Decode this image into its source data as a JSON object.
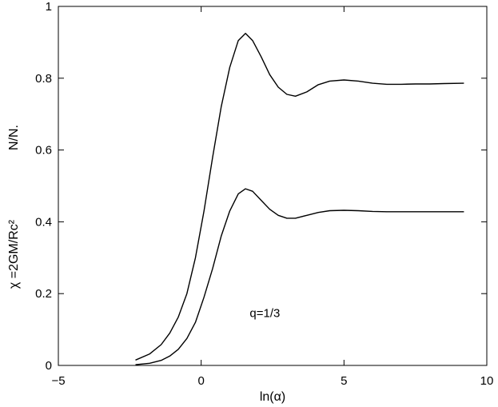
{
  "chart_data": {
    "type": "line",
    "title": "",
    "xlabel": "ln(α)",
    "ylabel_line1": "N/N.",
    "ylabel_line2": "χ =2GM/Rc²",
    "xlim": [
      -5,
      10
    ],
    "ylim": [
      0,
      1
    ],
    "x_ticks": [
      -5,
      0,
      5,
      10
    ],
    "x_tick_labels": [
      "−5",
      "0",
      "5",
      "10"
    ],
    "y_ticks": [
      0,
      0.2,
      0.4,
      0.6,
      0.8,
      1
    ],
    "y_tick_labels": [
      "0",
      "0.2",
      "0.4",
      "0.6",
      "0.8",
      "1"
    ],
    "grid": false,
    "annotations": [
      {
        "text": "q=1/3",
        "x": 1.7,
        "y": 0.135
      }
    ],
    "series": [
      {
        "x": [
          -2.3,
          -1.8,
          -1.4,
          -1.1,
          -0.8,
          -0.5,
          -0.2,
          0.1,
          0.4,
          0.7,
          1.0,
          1.3,
          1.55,
          1.8,
          2.1,
          2.4,
          2.7,
          3.0,
          3.3,
          3.7,
          4.1,
          4.5,
          5.0,
          5.5,
          6.0,
          6.5,
          7.0,
          7.5,
          8.0,
          8.5,
          9.2
        ],
        "values": [
          0.015,
          0.032,
          0.058,
          0.09,
          0.135,
          0.2,
          0.3,
          0.43,
          0.58,
          0.72,
          0.83,
          0.905,
          0.925,
          0.905,
          0.86,
          0.81,
          0.775,
          0.755,
          0.75,
          0.762,
          0.782,
          0.792,
          0.795,
          0.792,
          0.786,
          0.783,
          0.783,
          0.784,
          0.784,
          0.785,
          0.786
        ]
      },
      {
        "x": [
          -2.3,
          -1.8,
          -1.4,
          -1.1,
          -0.8,
          -0.5,
          -0.2,
          0.1,
          0.4,
          0.7,
          1.0,
          1.3,
          1.55,
          1.8,
          2.1,
          2.4,
          2.7,
          3.0,
          3.3,
          3.7,
          4.1,
          4.5,
          5.0,
          5.5,
          6.0,
          6.5,
          7.0,
          7.5,
          8.0,
          8.5,
          9.2
        ],
        "values": [
          0.002,
          0.006,
          0.014,
          0.026,
          0.045,
          0.075,
          0.12,
          0.19,
          0.27,
          0.36,
          0.43,
          0.478,
          0.492,
          0.485,
          0.46,
          0.435,
          0.418,
          0.41,
          0.41,
          0.418,
          0.426,
          0.431,
          0.432,
          0.431,
          0.429,
          0.428,
          0.428,
          0.428,
          0.428,
          0.428,
          0.428
        ]
      }
    ]
  },
  "colors": {
    "line": "#000000",
    "axes": "#000000",
    "background": "#ffffff"
  }
}
